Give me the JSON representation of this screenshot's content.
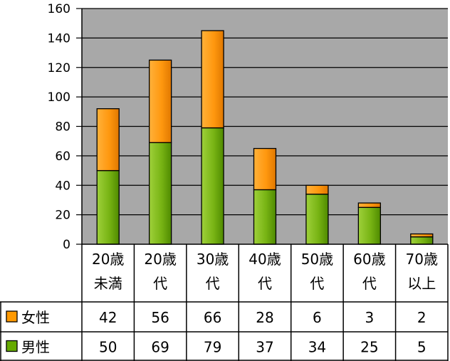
{
  "chart_data": {
    "type": "bar",
    "stacked": true,
    "categories": [
      [
        "20歳",
        "未満"
      ],
      [
        "20歳",
        "代"
      ],
      [
        "30歳",
        "代"
      ],
      [
        "40歳",
        "代"
      ],
      [
        "50歳",
        "代"
      ],
      [
        "60歳",
        "代"
      ],
      [
        "70歳",
        "以上"
      ]
    ],
    "series": [
      {
        "name": "男性",
        "values": [
          50,
          69,
          79,
          37,
          34,
          25,
          5
        ],
        "color": "#66aa00"
      },
      {
        "name": "女性",
        "values": [
          42,
          56,
          66,
          28,
          6,
          3,
          2
        ],
        "color": "#ff9900"
      }
    ],
    "table_row_order": [
      "女性",
      "男性"
    ],
    "y_ticks": [
      0,
      20,
      40,
      60,
      80,
      100,
      120,
      140,
      160
    ],
    "ylim": [
      0,
      160
    ],
    "grid": true,
    "plot_background": "#a8a8a8",
    "title": "",
    "xlabel": "",
    "ylabel": "",
    "legend": "data-table"
  }
}
